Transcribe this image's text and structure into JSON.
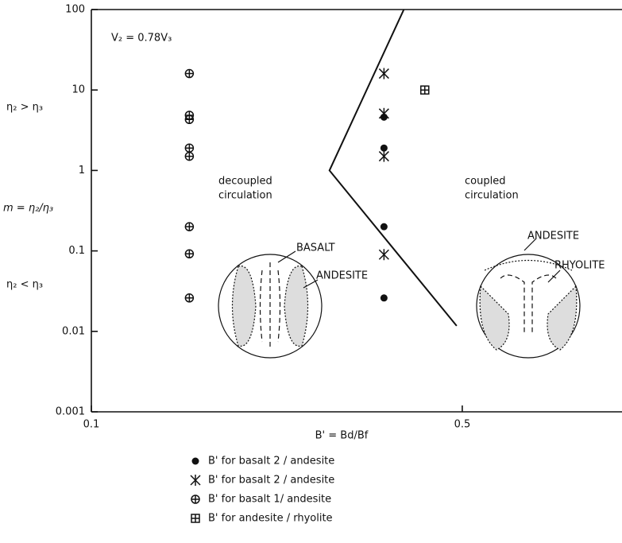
{
  "chart_data": {
    "type": "scatter",
    "xlabel": "B' = Bd/Bf",
    "ylabel": "m = η₂/η₃",
    "xscale": "log",
    "yscale": "log",
    "xlim": [
      0.1,
      1
    ],
    "ylim": [
      0.001,
      100
    ],
    "xticks": [
      0.1,
      0.5
    ],
    "yticks": [
      0.001,
      0.01,
      0.1,
      1,
      10,
      100
    ],
    "series": [
      {
        "name": "B' for basalt 2 / andesite",
        "marker": "dot",
        "color": "#111111",
        "x": [
          0.356,
          0.356,
          0.356,
          0.356
        ],
        "values": [
          4.6,
          1.9,
          0.2,
          0.026
        ]
      },
      {
        "name": "B' for basalt 2 / andesite",
        "marker": "asterisk",
        "color": "#111111",
        "x": [
          0.356,
          0.356,
          0.356,
          0.356
        ],
        "values": [
          16,
          5.1,
          1.5,
          0.09
        ]
      },
      {
        "name": "B' for basalt 1/ andesite",
        "marker": "crossed-circle",
        "color": "#111111",
        "x": [
          0.153,
          0.153,
          0.153,
          0.153,
          0.153,
          0.153,
          0.153,
          0.153
        ],
        "values": [
          16,
          4.85,
          4.3,
          1.9,
          1.5,
          0.2,
          0.092,
          0.026
        ]
      },
      {
        "name": "B' for andesite / rhyolite",
        "marker": "boxed-plus",
        "color": "#111111",
        "x": [
          0.425
        ],
        "values": [
          10
        ]
      }
    ],
    "boundary": {
      "x": [
        0.388,
        0.281,
        0.488
      ],
      "values": [
        100,
        1,
        0.0117
      ]
    },
    "annotations": [
      "V₂ = 0.78V₃",
      "η₂ > η₃",
      "η₂ < η₃",
      "decoupled",
      "circulation",
      "coupled",
      "circulation",
      "BASALT",
      "ANDESITE",
      "ANDESITE",
      "RHYOLITE"
    ]
  }
}
